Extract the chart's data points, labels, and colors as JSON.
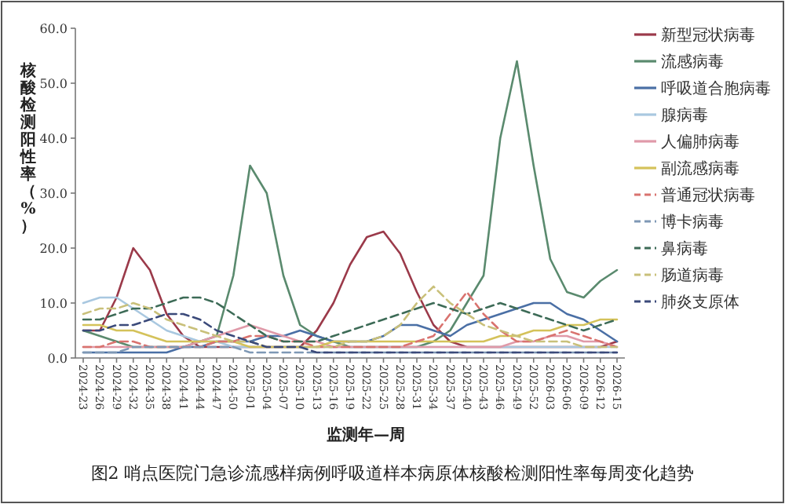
{
  "chart_data": {
    "type": "line",
    "title": "图2 哨点医院门急诊流感样病例呼吸道样本病原体核酸检测阳性率每周变化趋势",
    "xlabel": "监测年—周",
    "ylabel": "核酸检测阳性率（%）",
    "categories": [
      "2024-23",
      "2024-26",
      "2024-29",
      "2024-32",
      "2024-35",
      "2024-38",
      "2024-41",
      "2024-44",
      "2024-47",
      "2024-50",
      "2025-01",
      "2025-04",
      "2025-07",
      "2025-10",
      "2025-13",
      "2025-16",
      "2025-19",
      "2025-22",
      "2025-25",
      "2025-28",
      "2025-31",
      "2025-34",
      "2025-37",
      "2025-40",
      "2025-43",
      "2025-46",
      "2025-49",
      "2025-52",
      "2026-03",
      "2026-06",
      "2026-09",
      "2026-12",
      "2026-15"
    ],
    "ylim": [
      0,
      60
    ],
    "yticks": [
      {
        "value": 0,
        "label": "0.0"
      },
      {
        "value": 10,
        "label": "10.0"
      },
      {
        "value": 20,
        "label": "20.0"
      },
      {
        "value": 30,
        "label": "30.0"
      },
      {
        "value": 40,
        "label": "40.0"
      },
      {
        "value": 50,
        "label": "50.0"
      },
      {
        "value": 60,
        "label": "60.0"
      }
    ],
    "legend": "right",
    "series": [
      {
        "name": "新型冠状病毒",
        "color": "#9b3a4a",
        "line_style": "solid",
        "values": [
          5,
          5,
          11,
          20,
          16,
          8,
          4,
          2,
          2,
          2,
          2,
          2,
          2,
          2,
          5,
          10,
          17,
          22,
          23,
          19,
          12,
          6,
          3,
          2,
          2,
          2,
          2,
          2,
          2,
          2,
          2,
          2,
          3
        ]
      },
      {
        "name": "流感病毒",
        "color": "#5a8a6e",
        "line_style": "solid",
        "values": [
          5,
          4,
          3,
          2,
          2,
          2,
          2,
          3,
          4,
          15,
          35,
          30,
          15,
          6,
          4,
          3,
          2,
          2,
          2,
          2,
          2,
          3,
          5,
          10,
          15,
          40,
          54,
          35,
          18,
          12,
          11,
          14,
          16
        ]
      },
      {
        "name": "呼吸道合胞病毒",
        "color": "#4a6fa5",
        "line_style": "solid",
        "values": [
          1,
          1,
          1,
          1,
          1,
          1,
          2,
          2,
          3,
          3,
          3,
          4,
          4,
          5,
          4,
          3,
          3,
          3,
          4,
          6,
          6,
          5,
          4,
          6,
          7,
          8,
          9,
          10,
          10,
          8,
          7,
          5,
          3
        ]
      },
      {
        "name": "腺病毒",
        "color": "#a9c8e0",
        "line_style": "solid",
        "values": [
          10,
          11,
          11,
          9,
          7,
          5,
          4,
          3,
          3,
          2,
          2,
          2,
          2,
          2,
          2,
          2,
          2,
          2,
          2,
          2,
          2,
          2,
          2,
          2,
          2,
          2,
          2,
          2,
          2,
          2,
          2,
          2,
          2
        ]
      },
      {
        "name": "人偏肺病毒",
        "color": "#e09aa9",
        "line_style": "solid",
        "values": [
          2,
          2,
          2,
          2,
          2,
          2,
          2,
          3,
          4,
          5,
          6,
          5,
          4,
          3,
          3,
          2,
          2,
          2,
          2,
          2,
          2,
          2,
          2,
          2,
          2,
          2,
          3,
          3,
          4,
          4,
          3,
          3,
          2
        ]
      },
      {
        "name": "副流感病毒",
        "color": "#d4c25a",
        "line_style": "solid",
        "values": [
          6,
          6,
          5,
          5,
          4,
          3,
          3,
          3,
          3,
          3,
          2,
          2,
          2,
          2,
          2,
          3,
          3,
          3,
          3,
          3,
          3,
          3,
          3,
          3,
          3,
          4,
          4,
          5,
          5,
          6,
          6,
          7,
          7
        ]
      },
      {
        "name": "普通冠状病毒",
        "color": "#d9736f",
        "line_style": "dashed",
        "values": [
          2,
          2,
          3,
          3,
          2,
          2,
          2,
          2,
          3,
          3,
          4,
          4,
          3,
          3,
          2,
          2,
          2,
          2,
          2,
          2,
          3,
          4,
          8,
          12,
          8,
          5,
          3,
          3,
          4,
          5,
          4,
          3,
          2
        ]
      },
      {
        "name": "博卡病毒",
        "color": "#7e98b5",
        "line_style": "dashed",
        "values": [
          1,
          1,
          1,
          2,
          2,
          2,
          2,
          2,
          2,
          2,
          1,
          1,
          1,
          1,
          1,
          1,
          1,
          1,
          1,
          1,
          1,
          1,
          1,
          1,
          1,
          1,
          1,
          1,
          1,
          1,
          1,
          1,
          1
        ]
      },
      {
        "name": "鼻病毒",
        "color": "#3d6b57",
        "line_style": "dashed",
        "values": [
          7,
          7,
          8,
          9,
          9,
          10,
          11,
          11,
          10,
          8,
          6,
          4,
          3,
          3,
          3,
          4,
          5,
          6,
          7,
          8,
          9,
          10,
          9,
          8,
          9,
          10,
          9,
          8,
          7,
          6,
          5,
          6,
          7
        ]
      },
      {
        "name": "肠道病毒",
        "color": "#c9c07a",
        "line_style": "dashed",
        "values": [
          8,
          9,
          9,
          10,
          9,
          7,
          6,
          5,
          4,
          3,
          3,
          2,
          2,
          2,
          2,
          2,
          3,
          3,
          4,
          6,
          10,
          13,
          10,
          8,
          6,
          5,
          4,
          3,
          3,
          3,
          2,
          2,
          2
        ]
      },
      {
        "name": "肺炎支原体",
        "color": "#3b4a7a",
        "line_style": "dashed",
        "values": [
          5,
          5,
          6,
          6,
          7,
          8,
          8,
          7,
          5,
          4,
          3,
          2,
          2,
          2,
          1,
          1,
          1,
          1,
          1,
          1,
          1,
          1,
          1,
          1,
          1,
          1,
          1,
          1,
          1,
          1,
          1,
          1,
          1
        ]
      }
    ]
  }
}
